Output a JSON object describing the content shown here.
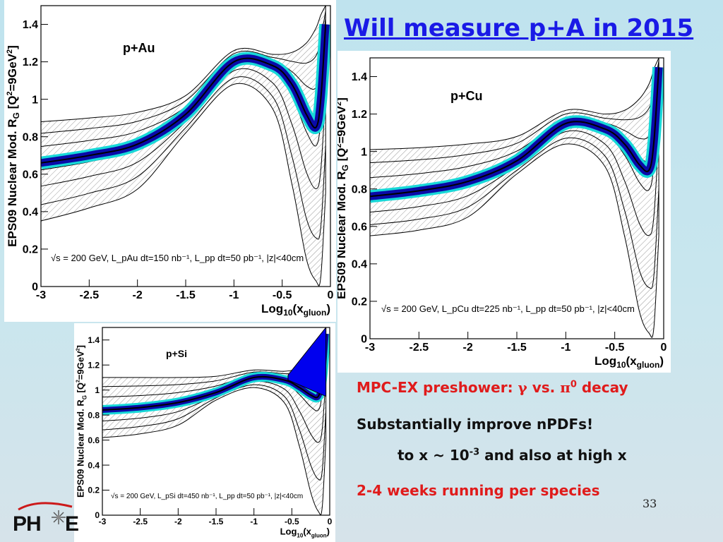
{
  "slide": {
    "title": "Will measure p+A in 2015",
    "page_number": "33",
    "bullets": {
      "b1_pre": "MPC-EX preshower: ",
      "b1_gamma": "γ",
      "b1_mid": " vs. ",
      "b1_pi": "π",
      "b1_sup": "0",
      "b1_post": " decay",
      "b2": "Substantially improve nPDFs!",
      "b3_pre": "to x ~ 10",
      "b3_sup": "-3",
      "b3_post": " and also at high x",
      "b4": "2-4 weeks running per species"
    },
    "logo": {
      "left_text": "PH",
      "right_text": "E"
    }
  },
  "chart_data": [
    {
      "type": "line",
      "label": "p+Au",
      "ylabel": "EPS09 Nuclear Mod. R_G [Q²=9GeV²]",
      "xlabel": "Log10(x_gluon)",
      "annotation": "√s = 200 GeV, L_pAu dt=150 nb⁻¹, L_pp dt=50 pb⁻¹, |z|<40cm",
      "xlim": [
        -3,
        0
      ],
      "ylim": [
        0,
        1.5
      ],
      "xticks": [
        "-3",
        "-2.5",
        "-2",
        "-1.5",
        "-1",
        "-0.5",
        "0"
      ],
      "yticks": [
        "0",
        "0.2",
        "0.4",
        "0.6",
        "0.8",
        "1",
        "1.2",
        "1.4"
      ],
      "x": [
        -3,
        -2.5,
        -2,
        -1.5,
        -1,
        -0.6,
        -0.4,
        -0.25,
        -0.15,
        -0.1,
        -0.05
      ],
      "series": [
        {
          "role": "central",
          "values": [
            0.66,
            0.7,
            0.76,
            0.92,
            1.2,
            1.18,
            1.08,
            0.92,
            0.85,
            1.0,
            1.4
          ]
        },
        {
          "role": "upper",
          "values": [
            0.88,
            0.9,
            0.93,
            1.02,
            1.26,
            1.24,
            1.25,
            1.3,
            1.38,
            1.45,
            1.5
          ]
        },
        {
          "role": "lower",
          "values": [
            0.35,
            0.42,
            0.52,
            0.82,
            1.08,
            0.95,
            0.55,
            0.15,
            0.03,
            0.05,
            0.5
          ]
        }
      ]
    },
    {
      "type": "line",
      "label": "p+Cu",
      "ylabel": "EPS09 Nuclear Mod. R_G [Q²=9GeV²]",
      "xlabel": "Log10(x_gluon)",
      "annotation": "√s = 200 GeV, L_pCu dt=225 nb⁻¹, L_pp dt=50 pb⁻¹, |z|<40cm",
      "xlim": [
        -3,
        0
      ],
      "ylim": [
        0,
        1.5
      ],
      "xticks": [
        "-3",
        "-2.5",
        "-2",
        "-1.5",
        "-1",
        "-0.5",
        "0"
      ],
      "yticks": [
        "0",
        "0.2",
        "0.4",
        "0.6",
        "0.8",
        "1",
        "1.2",
        "1.4"
      ],
      "x": [
        -3,
        -2.5,
        -2,
        -1.5,
        -1,
        -0.6,
        -0.4,
        -0.25,
        -0.15,
        -0.1,
        -0.05
      ],
      "series": [
        {
          "role": "central",
          "values": [
            0.76,
            0.79,
            0.84,
            0.95,
            1.15,
            1.12,
            1.04,
            0.93,
            0.9,
            1.05,
            1.45
          ]
        },
        {
          "role": "upper",
          "values": [
            1.01,
            1.02,
            1.04,
            1.08,
            1.22,
            1.2,
            1.22,
            1.28,
            1.36,
            1.44,
            1.5
          ]
        },
        {
          "role": "lower",
          "values": [
            0.55,
            0.58,
            0.65,
            0.88,
            1.04,
            0.92,
            0.55,
            0.15,
            0.03,
            0.06,
            0.55
          ]
        }
      ]
    },
    {
      "type": "line",
      "label": "p+Si",
      "ylabel": "EPS09 Nuclear Mod. R_G [Q²=9GeV²]",
      "xlabel": "Log10(x_gluon)",
      "annotation": "√s = 200 GeV, L_pSi dt=450 nb⁻¹, L_pp dt=50 pb⁻¹, |z|<40cm",
      "xlim": [
        -3,
        0
      ],
      "ylim": [
        0,
        1.5
      ],
      "xticks": [
        "-3",
        "-2.5",
        "-2",
        "-1.5",
        "-1",
        "-0.5",
        "0"
      ],
      "yticks": [
        "0",
        "0.2",
        "0.4",
        "0.6",
        "0.8",
        "1",
        "1.2",
        "1.4"
      ],
      "x": [
        -3,
        -2.5,
        -2,
        -1.5,
        -1,
        -0.6,
        -0.4,
        -0.25,
        -0.15,
        -0.1,
        -0.05
      ],
      "series": [
        {
          "role": "central",
          "values": [
            0.84,
            0.86,
            0.9,
            0.98,
            1.1,
            1.08,
            1.02,
            0.96,
            0.95,
            1.1,
            1.45
          ]
        },
        {
          "role": "upper",
          "values": [
            1.1,
            1.1,
            1.1,
            1.11,
            1.16,
            1.15,
            1.18,
            1.25,
            1.33,
            1.42,
            1.5
          ]
        },
        {
          "role": "lower",
          "values": [
            0.62,
            0.65,
            0.72,
            0.92,
            1.02,
            0.9,
            0.55,
            0.18,
            0.03,
            0.06,
            0.6
          ]
        }
      ]
    }
  ]
}
